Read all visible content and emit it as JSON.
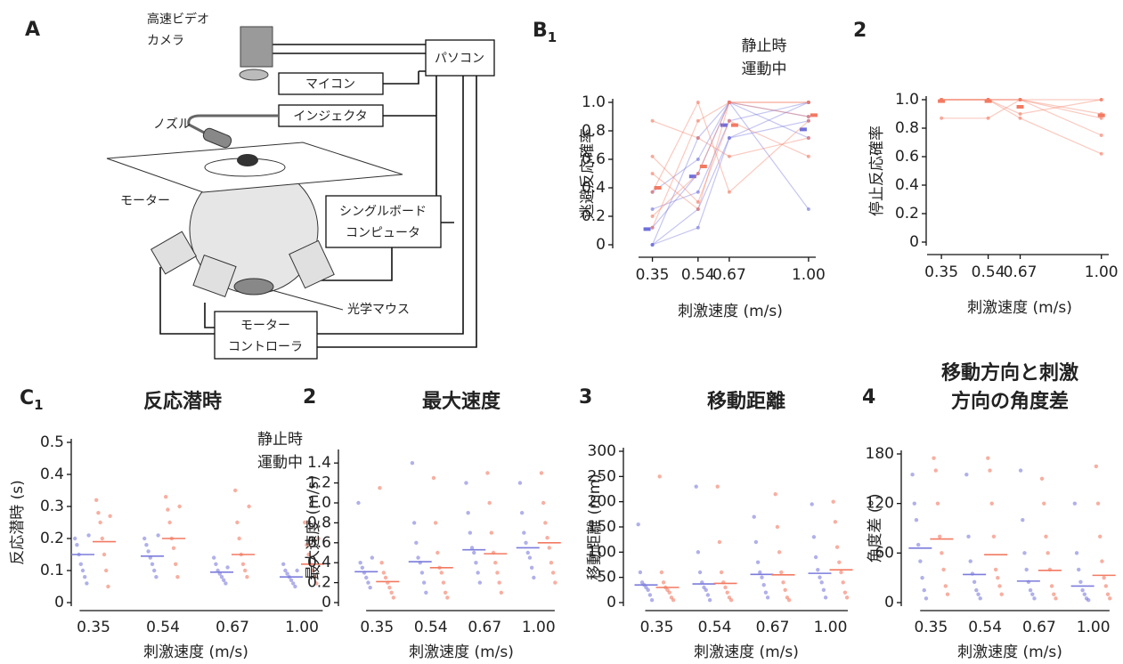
{
  "panel_a": {
    "label": "A",
    "camera": [
      "高速ビデオ",
      "カメラ"
    ],
    "pc": "パソコン",
    "micro": "マイコン",
    "injector": "インジェクタ",
    "nozzle": "ノズル",
    "motor": "モーター",
    "sbc": [
      "シングルボード",
      "コンピュータ"
    ],
    "mouse": "光学マウス",
    "controller": [
      "モーター",
      "コントローラ"
    ]
  },
  "chart_data": [
    {
      "type": "line",
      "label": "B",
      "label_sub": "1",
      "ylabel": "逃避反応確率",
      "xlabel": "刺激速度 (m/s)",
      "legend": true,
      "x": [
        0.35,
        0.54,
        0.67,
        1.0
      ],
      "xlim": [
        0.27,
        1.03
      ],
      "xticks": [
        0.35,
        0.54,
        0.67,
        {
          "value": 1,
          "label": "1.00"
        }
      ],
      "ylim": [
        0,
        1
      ],
      "yticks": [
        0,
        0.2,
        0.4,
        0.6,
        0.8,
        {
          "value": 1,
          "label": "1.0"
        }
      ],
      "series": [
        {
          "name": "静止時",
          "color": "#6f6fdc",
          "values": [
            0.11,
            0.48,
            0.84,
            0.81
          ],
          "subjects": [
            [
              0,
              0.25,
              0.75,
              1.0
            ],
            [
              0.12,
              0.5,
              1.0,
              0.75
            ],
            [
              0.25,
              0.37,
              0.87,
              1.0
            ],
            [
              0.37,
              0.6,
              1.0,
              0.25
            ],
            [
              0,
              0.12,
              0.75,
              0.87
            ],
            [
              0,
              0.75,
              1.0,
              0.9
            ]
          ]
        },
        {
          "name": "運動中",
          "color": "#f27a62",
          "values": [
            0.4,
            0.55,
            0.84,
            0.91
          ],
          "subjects": [
            [
              0.5,
              0.25,
              1.0,
              1.0
            ],
            [
              0.87,
              0.75,
              0.62,
              0.75
            ],
            [
              0.37,
              1.0,
              0.37,
              0.87
            ],
            [
              0.12,
              0.87,
              1.0,
              1.0
            ],
            [
              0.62,
              0.3,
              0.87,
              0.62
            ],
            [
              0.2,
              0.5,
              1.0,
              0.9
            ]
          ]
        }
      ]
    },
    {
      "type": "line",
      "label": "2",
      "ylabel": "停止反応確率",
      "xlabel": "刺激速度 (m/s)",
      "legend": false,
      "x": [
        0.35,
        0.54,
        0.67,
        1.0
      ],
      "xlim": [
        0.27,
        1.03
      ],
      "xticks": [
        0.35,
        0.54,
        0.67,
        {
          "value": 1,
          "label": "1.00"
        }
      ],
      "ylim": [
        0,
        1
      ],
      "yticks": [
        0,
        0.2,
        0.4,
        0.6,
        0.8,
        {
          "value": 1,
          "label": "1.0"
        }
      ],
      "series": [
        {
          "color": "#f27a62",
          "values": [
            0.99,
            0.99,
            0.95,
            0.89
          ],
          "subjects": [
            [
              1,
              1,
              1,
              1
            ],
            [
              1,
              1,
              0.87,
              0.62
            ],
            [
              1,
              1,
              1,
              0.75
            ],
            [
              0.87,
              0.87,
              1,
              0.87
            ],
            [
              1,
              1,
              0.9,
              1
            ],
            [
              1,
              1,
              1,
              0.9
            ]
          ]
        }
      ]
    },
    {
      "type": "strip",
      "label": "C",
      "label_sub": "1",
      "title": "反応潜時",
      "ylabel": "反応潜時 (s)",
      "xlabel": "刺激速度 (m/s)",
      "legend": true,
      "categories": [
        "0.35",
        "0.54",
        "0.67",
        "1.00"
      ],
      "ylim": [
        0,
        0.5
      ],
      "yticks": [
        0,
        0.1,
        0.2,
        0.3,
        0.4,
        0.5
      ],
      "series": [
        {
          "name": "静止時",
          "color": "#7c7cdc",
          "values": [
            0.15,
            0.145,
            0.095,
            0.08
          ],
          "points": [
            [
              0.2,
              0.18,
              0.15,
              0.12,
              0.1,
              0.08,
              0.06,
              0.21
            ],
            [
              0.2,
              0.18,
              0.16,
              0.14,
              0.12,
              0.1,
              0.08,
              0.21
            ],
            [
              0.14,
              0.12,
              0.1,
              0.09,
              0.08,
              0.07,
              0.06,
              0.11
            ],
            [
              0.12,
              0.1,
              0.09,
              0.08,
              0.07,
              0.06,
              0.05,
              0.1
            ]
          ]
        },
        {
          "name": "運動中",
          "color": "#f27a62",
          "values": [
            0.19,
            0.2,
            0.15,
            0.12
          ],
          "points": [
            [
              0.32,
              0.28,
              0.25,
              0.2,
              0.15,
              0.1,
              0.05,
              0.27
            ],
            [
              0.33,
              0.29,
              0.25,
              0.2,
              0.17,
              0.12,
              0.08,
              0.3
            ],
            [
              0.35,
              0.25,
              0.2,
              0.15,
              0.12,
              0.1,
              0.08,
              0.3
            ],
            [
              0.25,
              0.18,
              0.15,
              0.12,
              0.1,
              0.08,
              0.06,
              0.2
            ]
          ]
        }
      ]
    },
    {
      "type": "strip",
      "label": "2",
      "title": "最大速度",
      "ylabel": "最大速度 (m/s)",
      "xlabel": "刺激速度 (m/s)",
      "legend": false,
      "categories": [
        "0.35",
        "0.54",
        "0.67",
        "1.00"
      ],
      "ylim": [
        0,
        1.5
      ],
      "yticks": [
        0,
        0.2,
        0.4,
        0.6,
        0.8,
        {
          "value": 1,
          "label": "1.0"
        },
        1.2,
        1.4
      ],
      "series": [
        {
          "color": "#7c7cdc",
          "values": [
            0.31,
            0.41,
            0.53,
            0.55
          ],
          "points": [
            [
              1.0,
              0.4,
              0.35,
              0.3,
              0.25,
              0.2,
              0.15,
              0.45
            ],
            [
              1.4,
              0.8,
              0.6,
              0.45,
              0.4,
              0.3,
              0.2,
              0.1
            ],
            [
              1.2,
              0.9,
              0.7,
              0.55,
              0.5,
              0.4,
              0.3,
              0.2
            ],
            [
              1.2,
              0.9,
              0.7,
              0.6,
              0.5,
              0.45,
              0.35,
              0.25
            ]
          ]
        },
        {
          "color": "#f27a62",
          "values": [
            0.21,
            0.35,
            0.49,
            0.6
          ],
          "points": [
            [
              1.15,
              0.4,
              0.3,
              0.25,
              0.2,
              0.15,
              0.1,
              0.05
            ],
            [
              1.25,
              0.8,
              0.5,
              0.35,
              0.3,
              0.2,
              0.1,
              0.05
            ],
            [
              1.3,
              1.0,
              0.7,
              0.5,
              0.4,
              0.3,
              0.2,
              0.1
            ],
            [
              1.3,
              1.0,
              0.8,
              0.65,
              0.55,
              0.4,
              0.3,
              0.2
            ]
          ]
        }
      ]
    },
    {
      "type": "strip",
      "label": "3",
      "title": "移動距離",
      "ylabel": "移動距離 (mm)",
      "xlabel": "刺激速度 (m/s)",
      "legend": false,
      "categories": [
        "0.35",
        "0.54",
        "0.67",
        "1.00"
      ],
      "ylim": [
        0,
        300
      ],
      "yticks": [
        0,
        50,
        100,
        150,
        200,
        250,
        300
      ],
      "series": [
        {
          "color": "#7c7cdc",
          "values": [
            35,
            37,
            56,
            58
          ],
          "points": [
            [
              155,
              60,
              40,
              35,
              30,
              25,
              15,
              5
            ],
            [
              230,
              100,
              60,
              40,
              30,
              25,
              15,
              5
            ],
            [
              170,
              120,
              80,
              60,
              50,
              35,
              20,
              10
            ],
            [
              195,
              130,
              90,
              65,
              50,
              40,
              25,
              10
            ]
          ]
        },
        {
          "color": "#f27a62",
          "values": [
            30,
            38,
            55,
            65
          ],
          "points": [
            [
              250,
              60,
              40,
              30,
              25,
              20,
              10,
              5
            ],
            [
              230,
              120,
              60,
              40,
              30,
              20,
              10,
              5
            ],
            [
              215,
              150,
              100,
              60,
              40,
              25,
              10,
              5
            ],
            [
              200,
              160,
              110,
              80,
              60,
              40,
              20,
              10
            ]
          ]
        }
      ]
    },
    {
      "type": "strip",
      "label": "4",
      "title": [
        "移動方向と刺激",
        "方向の角度差"
      ],
      "ylabel": "角度差 (°)",
      "xlabel": "刺激速度 (m/s)",
      "legend": false,
      "categories": [
        "0.35",
        "0.54",
        "0.67",
        "1.00"
      ],
      "ylim": [
        0,
        180
      ],
      "yticks": [
        0,
        60,
        120,
        180
      ],
      "series": [
        {
          "color": "#7c7cdc",
          "values": [
            66,
            34,
            26,
            20
          ],
          "points": [
            [
              155,
              120,
              100,
              70,
              50,
              30,
              15,
              5
            ],
            [
              155,
              80,
              50,
              35,
              25,
              15,
              10,
              5
            ],
            [
              160,
              100,
              60,
              40,
              25,
              15,
              10,
              5
            ],
            [
              120,
              60,
              40,
              25,
              15,
              10,
              5,
              3
            ]
          ]
        },
        {
          "color": "#f27a62",
          "values": [
            77,
            58,
            39,
            33
          ],
          "points": [
            [
              175,
              160,
              120,
              80,
              60,
              40,
              20,
              10
            ],
            [
              175,
              160,
              120,
              80,
              40,
              30,
              20,
              10
            ],
            [
              150,
              120,
              80,
              60,
              40,
              20,
              10,
              5
            ],
            [
              165,
              120,
              80,
              50,
              30,
              20,
              10,
              5
            ]
          ]
        }
      ]
    }
  ]
}
